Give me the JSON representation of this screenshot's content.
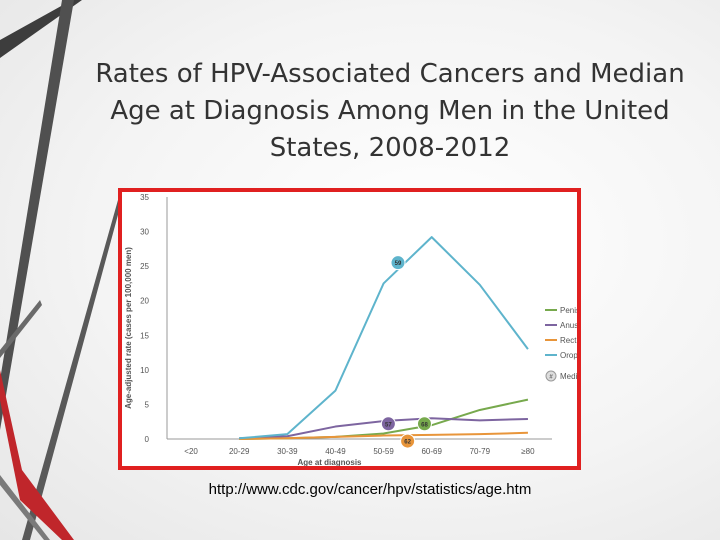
{
  "slide": {
    "title": "Rates of HPV-Associated Cancers and Median Age at Diagnosis Among Men in the United States, 2008-2012",
    "source_url": "http://www.cdc.gov/cancer/hpv/statistics/age.htm"
  },
  "colors": {
    "deco_dark": "#3d3d3d",
    "deco_red": "#c0262b",
    "frame": "#e02020"
  },
  "chart_data": {
    "type": "line",
    "title": "",
    "xlabel": "Age at diagnosis",
    "ylabel": "Age-adjusted rate (cases per 100,000 men)",
    "categories": [
      "<20",
      "20-29",
      "30-39",
      "40-49",
      "50-59",
      "60-69",
      "70-79",
      "≥80"
    ],
    "ylim": [
      0,
      35
    ],
    "yticks": [
      0,
      5,
      10,
      15,
      20,
      25,
      30,
      35
    ],
    "grid": false,
    "legend_position": "right",
    "series": [
      {
        "name": "Penis",
        "color": "#77a94d",
        "values": [
          null,
          0.0,
          0.1,
          0.3,
          0.8,
          2.0,
          4.2,
          5.7
        ]
      },
      {
        "name": "Anus",
        "color": "#7d65a0",
        "values": [
          null,
          0.1,
          0.4,
          1.8,
          2.6,
          3.0,
          2.7,
          2.9
        ]
      },
      {
        "name": "Rectum",
        "color": "#e8953a",
        "values": [
          null,
          0.0,
          0.1,
          0.3,
          0.5,
          0.6,
          0.7,
          0.9
        ]
      },
      {
        "name": "Oropharynx",
        "color": "#5eb4cc",
        "values": [
          null,
          0.1,
          0.7,
          7.0,
          22.5,
          29.2,
          22.3,
          13.0
        ]
      }
    ],
    "median_markers": [
      {
        "series": "Oropharynx",
        "label": "59",
        "x": 4.3,
        "y": 25.5
      },
      {
        "series": "Anus",
        "label": "57",
        "x": 4.1,
        "y": 2.2
      },
      {
        "series": "Penis",
        "label": "68",
        "x": 4.85,
        "y": 2.2
      },
      {
        "series": "Rectum",
        "label": "62",
        "x": 4.5,
        "y": -0.3
      }
    ],
    "median_legend_label": "Median age",
    "median_legend_symbol": "#"
  }
}
